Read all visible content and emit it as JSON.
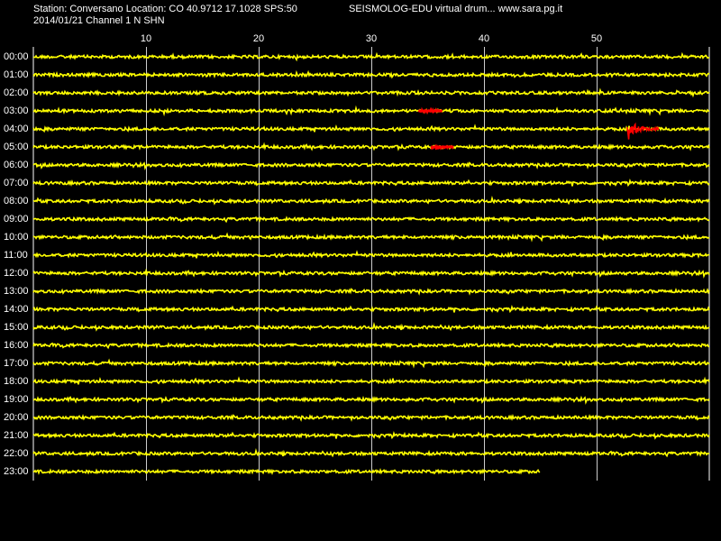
{
  "header": {
    "station_line": "Station: Conversano Location: CO 40.9712 17.1028 SPS:50",
    "date_line": "2014/01/21  Channel 1 N SHN",
    "brand": "SEISMOLOG-EDU virtual drum... www.sara.pg.it"
  },
  "colors": {
    "background": "#000000",
    "trace": "#ffff00",
    "event": "#ff0000",
    "grid": "#ffffff",
    "text": "#ffffff"
  },
  "chart_data": {
    "type": "line",
    "title": "",
    "xlabel": "",
    "ylabel": "",
    "x_ticks": [
      "10",
      "20",
      "30",
      "40",
      "50"
    ],
    "x_tick_values": [
      10,
      20,
      30,
      40,
      50
    ],
    "xlim": [
      0,
      60
    ],
    "rows": [
      "00:00",
      "01:00",
      "02:00",
      "03:00",
      "04:00",
      "05:00",
      "06:00",
      "07:00",
      "08:00",
      "09:00",
      "10:00",
      "11:00",
      "12:00",
      "13:00",
      "14:00",
      "15:00",
      "16:00",
      "17:00",
      "18:00",
      "19:00",
      "20:00",
      "21:00",
      "22:00",
      "23:00"
    ],
    "last_row_end_minute": 45,
    "events": [
      {
        "row": "03:00",
        "start_minute": 34.2,
        "end_minute": 36.3,
        "amplitude": "small"
      },
      {
        "row": "04:00",
        "start_minute": 52.7,
        "end_minute": 55.5,
        "amplitude": "large"
      },
      {
        "row": "05:00",
        "start_minute": 35.3,
        "end_minute": 37.3,
        "amplitude": "small"
      }
    ],
    "grid": true
  }
}
